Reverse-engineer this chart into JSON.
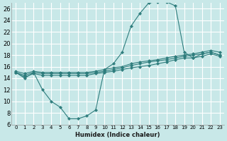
{
  "xlabel": "Humidex (Indice chaleur)",
  "background_color": "#c8e8e8",
  "grid_color": "#ffffff",
  "line_color": "#2e7d7d",
  "xlim": [
    -0.5,
    23.5
  ],
  "ylim": [
    6,
    27
  ],
  "yticks": [
    6,
    8,
    10,
    12,
    14,
    16,
    18,
    20,
    22,
    24,
    26
  ],
  "xticks": [
    0,
    1,
    2,
    3,
    4,
    5,
    6,
    7,
    8,
    9,
    10,
    11,
    12,
    13,
    14,
    15,
    16,
    17,
    18,
    19,
    20,
    21,
    22,
    23
  ],
  "series": [
    {
      "x": [
        0,
        1,
        2,
        3,
        4,
        5,
        6,
        7,
        8,
        9,
        10,
        11,
        12,
        13,
        14,
        15,
        16,
        17,
        18,
        19,
        20,
        21,
        22,
        23
      ],
      "y": [
        15.0,
        14.0,
        15.0,
        12.0,
        10.0,
        9.0,
        7.0,
        7.0,
        7.5,
        8.5,
        15.5,
        16.5,
        18.5,
        23.0,
        25.2,
        27.0,
        27.2,
        27.2,
        26.5,
        18.5,
        17.5,
        18.2,
        18.5,
        18.0
      ]
    },
    {
      "x": [
        0,
        1,
        2,
        3,
        4,
        5,
        6,
        7,
        8,
        9,
        10,
        11,
        12,
        13,
        14,
        15,
        16,
        17,
        18,
        19,
        20,
        21,
        22,
        23
      ],
      "y": [
        15.0,
        14.2,
        14.8,
        14.5,
        14.5,
        14.5,
        14.5,
        14.5,
        14.5,
        14.8,
        15.0,
        15.2,
        15.5,
        15.8,
        16.0,
        16.2,
        16.5,
        16.8,
        17.2,
        17.5,
        17.5,
        17.8,
        18.2,
        17.8
      ]
    },
    {
      "x": [
        0,
        1,
        2,
        3,
        4,
        5,
        6,
        7,
        8,
        9,
        10,
        11,
        12,
        13,
        14,
        15,
        16,
        17,
        18,
        19,
        20,
        21,
        22,
        23
      ],
      "y": [
        15.0,
        14.5,
        15.0,
        14.8,
        14.8,
        14.8,
        14.8,
        14.8,
        14.8,
        15.0,
        15.2,
        15.5,
        15.8,
        16.2,
        16.5,
        16.8,
        17.0,
        17.2,
        17.5,
        17.8,
        18.0,
        18.2,
        18.5,
        18.0
      ]
    },
    {
      "x": [
        0,
        1,
        2,
        3,
        4,
        5,
        6,
        7,
        8,
        9,
        10,
        11,
        12,
        13,
        14,
        15,
        16,
        17,
        18,
        19,
        20,
        21,
        22,
        23
      ],
      "y": [
        15.2,
        14.8,
        15.2,
        15.0,
        15.0,
        15.0,
        15.0,
        15.0,
        15.0,
        15.2,
        15.5,
        15.8,
        16.0,
        16.5,
        16.8,
        17.0,
        17.2,
        17.5,
        17.8,
        18.0,
        18.2,
        18.5,
        18.8,
        18.5
      ]
    }
  ]
}
